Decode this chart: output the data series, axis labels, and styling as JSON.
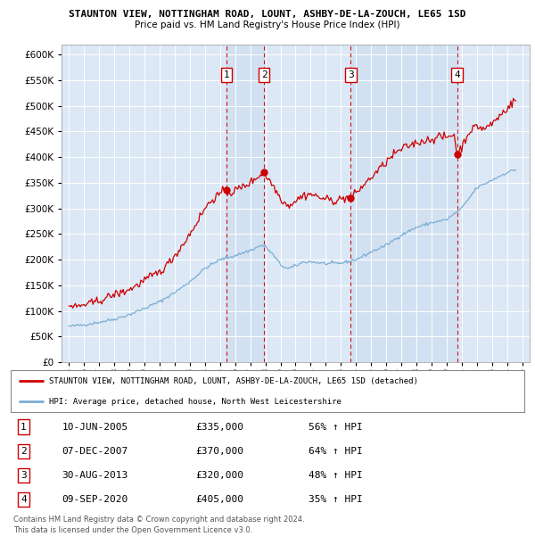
{
  "title1": "STAUNTON VIEW, NOTTINGHAM ROAD, LOUNT, ASHBY-DE-LA-ZOUCH, LE65 1SD",
  "title2": "Price paid vs. HM Land Registry's House Price Index (HPI)",
  "red_label": "STAUNTON VIEW, NOTTINGHAM ROAD, LOUNT, ASHBY-DE-LA-ZOUCH, LE65 1SD (detached)",
  "blue_label": "HPI: Average price, detached house, North West Leicestershire",
  "footer": "Contains HM Land Registry data © Crown copyright and database right 2024.\nThis data is licensed under the Open Government Licence v3.0.",
  "sales": [
    {
      "num": 1,
      "date": "10-JUN-2005",
      "price": 335000,
      "pct": "56%",
      "x": 2005.44
    },
    {
      "num": 2,
      "date": "07-DEC-2007",
      "price": 370000,
      "pct": "64%",
      "x": 2007.92
    },
    {
      "num": 3,
      "date": "30-AUG-2013",
      "price": 320000,
      "pct": "48%",
      "x": 2013.66
    },
    {
      "num": 4,
      "date": "09-SEP-2020",
      "price": 405000,
      "pct": "35%",
      "x": 2020.69
    }
  ],
  "ylim": [
    0,
    620000
  ],
  "xlim": [
    1994.5,
    2025.5
  ],
  "bg_color": "#ffffff",
  "plot_bg": "#dce8f5",
  "red_color": "#cc0000",
  "blue_color": "#7aadd4",
  "shade_color": "#ccddf0",
  "title1_fontsize": 8.5,
  "title2_fontsize": 8.0
}
